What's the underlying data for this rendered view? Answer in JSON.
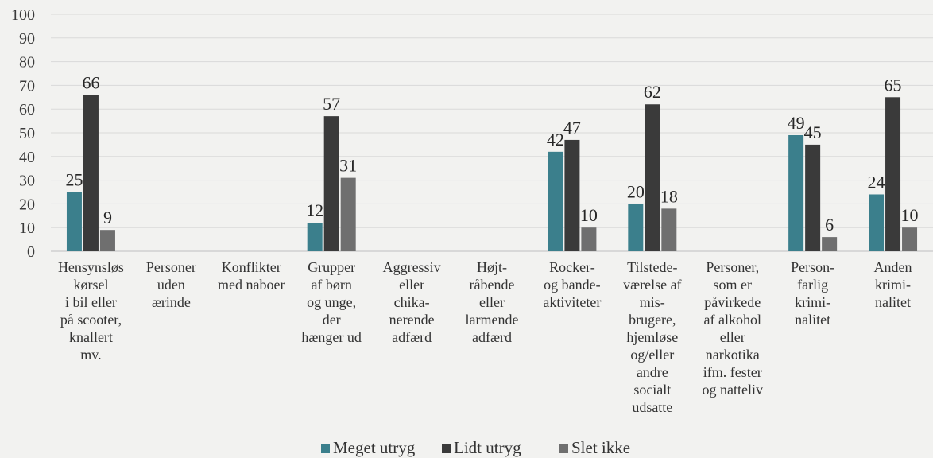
{
  "chart_data": {
    "type": "bar",
    "ylim": [
      0,
      100
    ],
    "yticks": [
      0,
      10,
      20,
      30,
      40,
      50,
      60,
      70,
      80,
      90,
      100
    ],
    "grid": true,
    "legend_position": "bottom",
    "categories": [
      [
        "Hensynsløs",
        "kørsel",
        "i bil eller",
        "på scooter,",
        "knallert",
        "mv."
      ],
      [
        "Personer",
        "uden",
        "ærinde"
      ],
      [
        "Konflikter",
        "med naboer"
      ],
      [
        "Grupper",
        "af børn",
        "og unge,",
        "der",
        "hænger ud"
      ],
      [
        "Aggressiv",
        "eller",
        "chika-",
        "nerende",
        "adfærd"
      ],
      [
        "Højt-",
        "råbende",
        "eller",
        "larmende",
        "adfærd"
      ],
      [
        "Rocker-",
        "og bande-",
        "aktiviteter"
      ],
      [
        "Tilstede-",
        "værelse af",
        "mis-",
        "brugere,",
        "hjemløse",
        "og/eller",
        "andre",
        "socialt",
        "udsatte"
      ],
      [
        "Personer,",
        "som er",
        "påvirkede",
        "af alkohol",
        "eller",
        "narkotika",
        "ifm. fester",
        "og natteliv"
      ],
      [
        "Person-",
        "farlig",
        "krimi-",
        "nalitet"
      ],
      [
        "Anden",
        "krimi-",
        "nalitet"
      ]
    ],
    "series": [
      {
        "name": "Meget utryg",
        "color": "#3b7f8c",
        "values": [
          25,
          null,
          null,
          12,
          null,
          null,
          42,
          20,
          null,
          49,
          24
        ]
      },
      {
        "name": "Lidt utryg",
        "color": "#3a3a3a",
        "values": [
          66,
          null,
          null,
          57,
          null,
          null,
          47,
          62,
          null,
          45,
          65
        ]
      },
      {
        "name": "Slet ikke",
        "color": "#6f6f6f",
        "values": [
          9,
          null,
          null,
          31,
          null,
          null,
          10,
          18,
          null,
          6,
          10
        ]
      }
    ]
  }
}
